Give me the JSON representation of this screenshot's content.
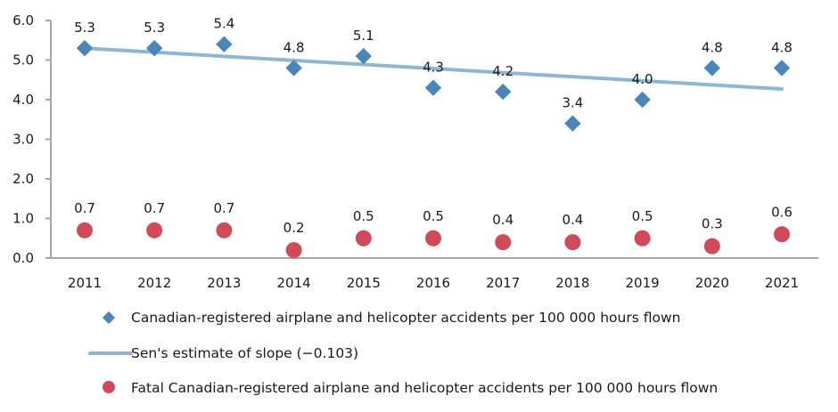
{
  "chart_data": {
    "type": "scatter",
    "title": "",
    "xlabel": "",
    "ylabel": "",
    "categories": [
      "2011",
      "2012",
      "2013",
      "2014",
      "2015",
      "2016",
      "2017",
      "2018",
      "2019",
      "2020",
      "2021"
    ],
    "ylim": [
      0,
      6
    ],
    "yticks": [
      "0.0",
      "1.0",
      "2.0",
      "3.0",
      "4.0",
      "5.0",
      "6.0"
    ],
    "ytick_values": [
      0,
      1,
      2,
      3,
      4,
      5,
      6
    ],
    "grid": false,
    "legend_position": "bottom",
    "series": [
      {
        "name": "Canadian-registered airplane and helicopter accidents per 100 000 hours flown",
        "marker": "diamond",
        "color": "#4a86b8",
        "values": [
          5.3,
          5.3,
          5.4,
          4.8,
          5.1,
          4.3,
          4.2,
          3.4,
          4.0,
          4.8,
          4.8
        ],
        "labels": [
          "5.3",
          "5.3",
          "5.4",
          "4.8",
          "5.1",
          "4.3",
          "4.2",
          "3.4",
          "4.0",
          "4.8",
          "4.8"
        ]
      },
      {
        "name": "Sen's estimate of slope (−0.103)",
        "type": "line",
        "color": "#8fb6d4",
        "slope": -0.103,
        "start_value": 5.3,
        "end_value": 4.27
      },
      {
        "name": "Fatal Canadian-registered airplane and helicopter accidents per 100 000 hours flown",
        "marker": "circle",
        "color": "#d04a5a",
        "values": [
          0.7,
          0.7,
          0.7,
          0.2,
          0.5,
          0.5,
          0.4,
          0.4,
          0.5,
          0.3,
          0.6
        ],
        "labels": [
          "0.7",
          "0.7",
          "0.7",
          "0.2",
          "0.5",
          "0.5",
          "0.4",
          "0.4",
          "0.5",
          "0.3",
          "0.6"
        ]
      }
    ]
  }
}
